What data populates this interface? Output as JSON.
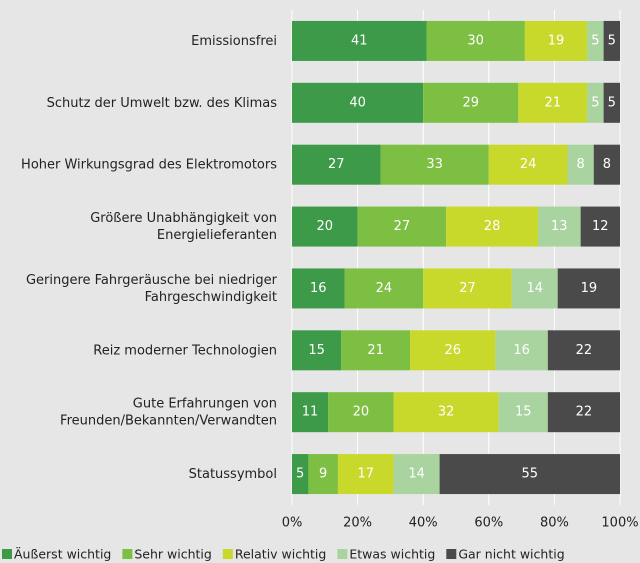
{
  "chart_data": {
    "type": "stacked_bar_horizontal",
    "categories": [
      "Emissionsfrei",
      "Schutz der Umwelt bzw. des Klimas",
      "Hoher Wirkungsgrad des Elektromotors",
      "Größere Unabhängigkeit von\nEnergielieferanten",
      "Geringere Fahrgeräusche bei niedriger\nFahrgeschwindigkeit",
      "Reiz moderner Technologien",
      "Gute Erfahrungen von\nFreunden/Bekannten/Verwandten",
      "Statussymbol"
    ],
    "series": [
      {
        "name": "Äußerst wichtig",
        "color": "#3d9a48",
        "values": [
          41,
          40,
          27,
          20,
          16,
          15,
          11,
          5
        ]
      },
      {
        "name": "Sehr wichtig",
        "color": "#7cbf43",
        "values": [
          30,
          29,
          33,
          27,
          24,
          21,
          20,
          9
        ]
      },
      {
        "name": "Relativ wichtig",
        "color": "#c9d92c",
        "values": [
          19,
          21,
          24,
          28,
          27,
          26,
          32,
          17
        ]
      },
      {
        "name": "Etwas wichtig",
        "color": "#a9d4a0",
        "values": [
          5,
          5,
          8,
          13,
          14,
          16,
          15,
          14
        ]
      },
      {
        "name": "Gar nicht wichtig",
        "color": "#4a4a4a",
        "values": [
          5,
          5,
          8,
          12,
          19,
          22,
          22,
          55
        ]
      }
    ],
    "xlim": [
      0,
      100
    ],
    "xticks": [
      {
        "value": 0,
        "label": "0%"
      },
      {
        "value": 20,
        "label": "20%"
      },
      {
        "value": 40,
        "label": "40%"
      },
      {
        "value": 60,
        "label": "60%"
      },
      {
        "value": 80,
        "label": "80%"
      },
      {
        "value": 100,
        "label": "100%"
      }
    ],
    "grid": true,
    "legend": "bottom"
  }
}
